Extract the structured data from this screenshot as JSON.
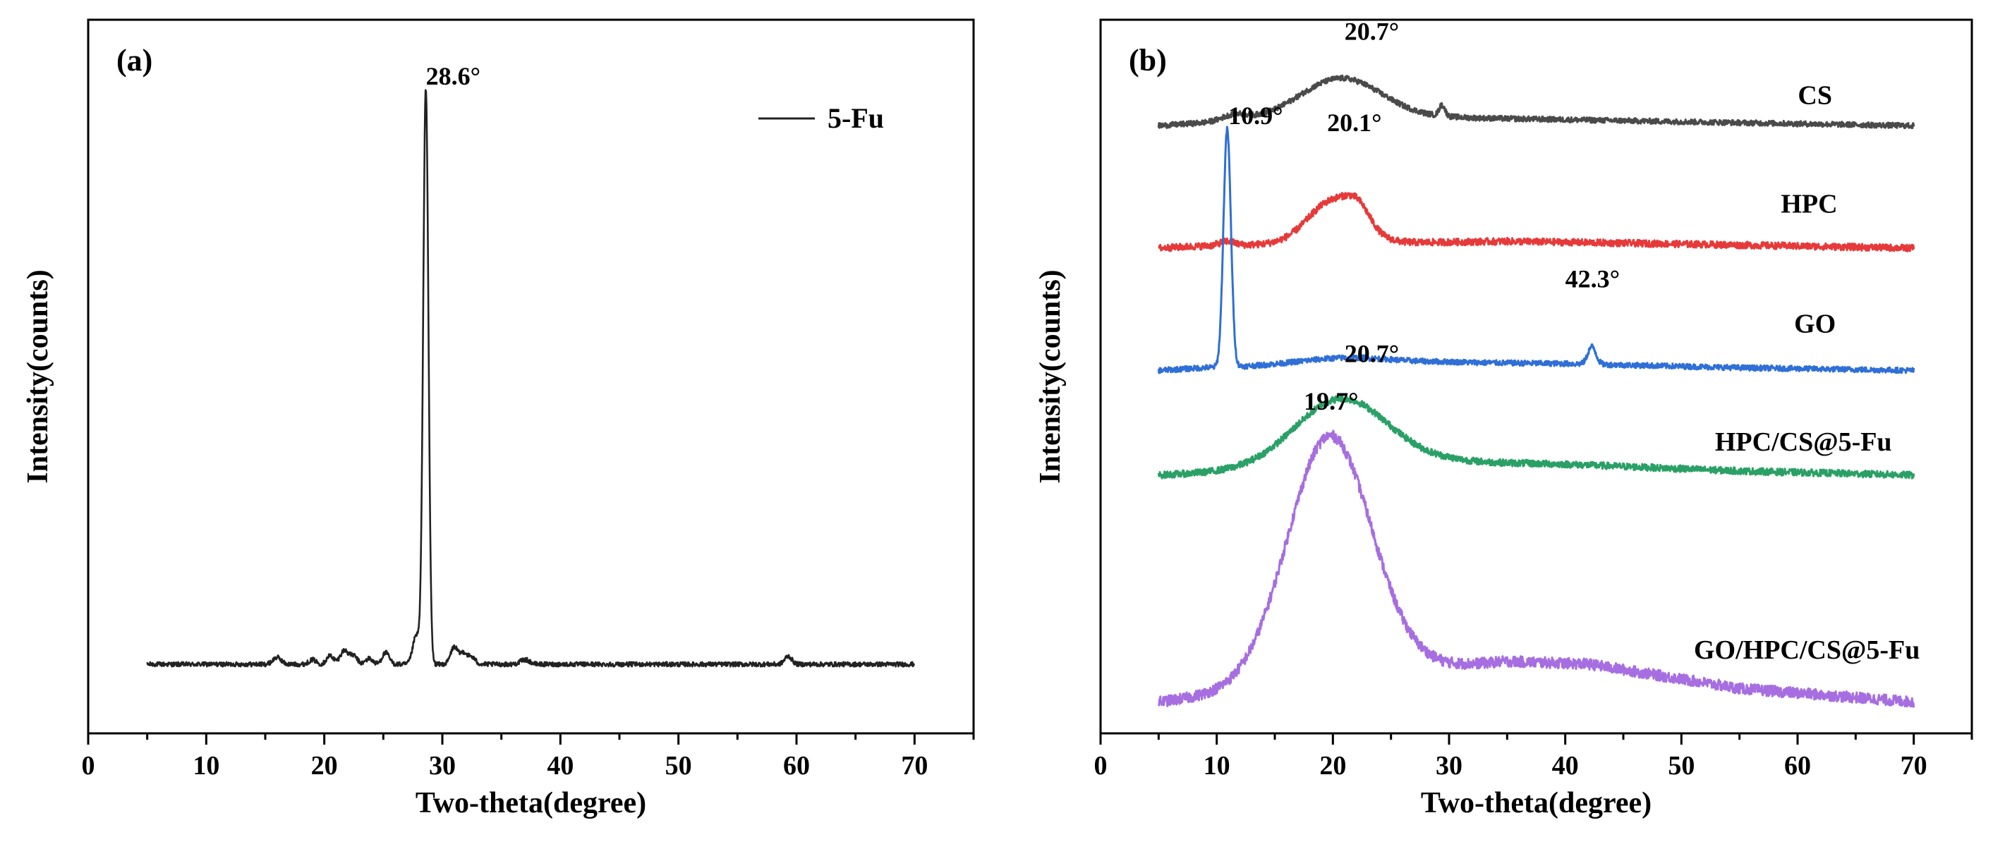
{
  "chart_data": [
    {
      "panel_label": "(a)",
      "type": "line",
      "title": "",
      "xlabel": "Two-theta(degree)",
      "ylabel": "Intensity(counts)",
      "xlim": [
        0,
        75
      ],
      "ylim": [
        -0.12,
        1.12
      ],
      "xticks": [
        "0",
        "10",
        "20",
        "30",
        "40",
        "50",
        "60",
        "70"
      ],
      "xtick_values": [
        0,
        10,
        20,
        30,
        40,
        50,
        60,
        70
      ],
      "minor_tick_step": 5,
      "legend": {
        "position": "top-right",
        "entries": [
          {
            "name": "5-Fu",
            "color": "#222222"
          }
        ]
      },
      "series": [
        {
          "name": "5-Fu",
          "color": "#222222",
          "x_range": [
            5,
            70
          ],
          "baseline": 0,
          "noise": 0.004,
          "peaks": [
            [
              16.0,
              0.012,
              0.35
            ],
            [
              19.0,
              0.008,
              0.3
            ],
            [
              20.5,
              0.015,
              0.3
            ],
            [
              21.7,
              0.024,
              0.35
            ],
            [
              22.5,
              0.014,
              0.3
            ],
            [
              23.8,
              0.01,
              0.3
            ],
            [
              25.2,
              0.02,
              0.3
            ],
            [
              27.8,
              0.05,
              0.3
            ],
            [
              28.6,
              1.0,
              0.22
            ],
            [
              31.0,
              0.03,
              0.3
            ],
            [
              31.8,
              0.02,
              0.3
            ],
            [
              32.5,
              0.012,
              0.3
            ],
            [
              37.0,
              0.008,
              0.4
            ],
            [
              59.3,
              0.014,
              0.3
            ]
          ]
        }
      ],
      "annotations": [
        {
          "text": "28.6°",
          "x": 28.6,
          "y": 1.0
        }
      ]
    },
    {
      "panel_label": "(b)",
      "type": "line",
      "title": "",
      "xlabel": "Two-theta(degree)",
      "ylabel": "Intensity(counts)",
      "xlim": [
        0,
        75
      ],
      "ylim": [
        -0.05,
        5.2
      ],
      "xticks": [
        "0",
        "10",
        "20",
        "30",
        "40",
        "50",
        "60",
        "70"
      ],
      "xtick_values": [
        0,
        10,
        20,
        30,
        40,
        50,
        60,
        70
      ],
      "minor_tick_step": 5,
      "series": [
        {
          "name": "CS",
          "color": "#4a4a4a",
          "x_range": [
            5,
            70
          ],
          "baseline": 4.42,
          "noise": 0.02,
          "background": [
            [
              5,
              0.0
            ],
            [
              12,
              0.04
            ],
            [
              30,
              0.06
            ],
            [
              50,
              0.03
            ],
            [
              70,
              0.0
            ]
          ],
          "peaks": [
            [
              20.7,
              0.3,
              3.5
            ],
            [
              11.5,
              0.04,
              1.0
            ],
            [
              29.4,
              0.08,
              0.25
            ]
          ]
        },
        {
          "name": "HPC",
          "color": "#e63a3a",
          "x_range": [
            5,
            70
          ],
          "baseline": 3.52,
          "noise": 0.025,
          "background": [
            [
              5,
              0.0
            ],
            [
              10,
              0.02
            ],
            [
              35,
              0.05
            ],
            [
              50,
              0.03
            ],
            [
              70,
              0.0
            ]
          ],
          "peaks": [
            [
              20.1,
              0.32,
              2.2
            ],
            [
              22.2,
              0.12,
              1.0
            ],
            [
              10.9,
              0.03,
              0.6
            ]
          ]
        },
        {
          "name": "GO",
          "color": "#2f6fd6",
          "x_range": [
            5,
            70
          ],
          "baseline": 2.62,
          "noise": 0.02,
          "background": [
            [
              5,
              0.0
            ],
            [
              9,
              0.02
            ],
            [
              30,
              0.06
            ],
            [
              40,
              0.05
            ],
            [
              55,
              0.02
            ],
            [
              70,
              0.0
            ]
          ],
          "peaks": [
            [
              10.9,
              1.75,
              0.32
            ],
            [
              42.3,
              0.13,
              0.35
            ],
            [
              21.0,
              0.05,
              4.0
            ]
          ]
        },
        {
          "name": "HPC/CS@5-Fu",
          "color": "#2aa066",
          "x_range": [
            5,
            70
          ],
          "baseline": 1.85,
          "noise": 0.025,
          "background": [
            [
              5,
              0.0
            ],
            [
              30,
              0.1
            ],
            [
              40,
              0.08
            ],
            [
              55,
              0.03
            ],
            [
              70,
              0.0
            ]
          ],
          "peaks": [
            [
              20.7,
              0.5,
              4.0
            ]
          ]
        },
        {
          "name": "GO/HPC/CS@5-Fu",
          "color": "#a66ee0",
          "x_range": [
            5,
            70
          ],
          "baseline": 0.18,
          "noise": 0.04,
          "background": [
            [
              5,
              0.0
            ],
            [
              28,
              0.25
            ],
            [
              35,
              0.3
            ],
            [
              42,
              0.28
            ],
            [
              55,
              0.1
            ],
            [
              70,
              0.0
            ]
          ],
          "peaks": [
            [
              19.7,
              1.8,
              3.6
            ]
          ]
        }
      ],
      "series_labels": [
        {
          "text": "CS",
          "x": 61.5,
          "y": 4.58
        },
        {
          "text": "HPC",
          "x": 61.0,
          "y": 3.78
        },
        {
          "text": "GO",
          "x": 61.5,
          "y": 2.9
        },
        {
          "text": "HPC/CS@5-Fu",
          "x": 60.5,
          "y": 2.03
        },
        {
          "text": "GO/HPC/CS@5-Fu",
          "x": 60.8,
          "y": 0.5
        }
      ],
      "annotations": [
        {
          "text": "20.7°",
          "x": 21.0,
          "y": 5.02
        },
        {
          "text": "10.9°",
          "x": 11.0,
          "y": 4.4
        },
        {
          "text": "20.1°",
          "x": 19.5,
          "y": 4.35
        },
        {
          "text": "42.3°",
          "x": 40.0,
          "y": 3.2
        },
        {
          "text": "20.7°",
          "x": 21.0,
          "y": 2.65
        },
        {
          "text": "19.7°",
          "x": 17.5,
          "y": 2.3
        }
      ]
    }
  ]
}
